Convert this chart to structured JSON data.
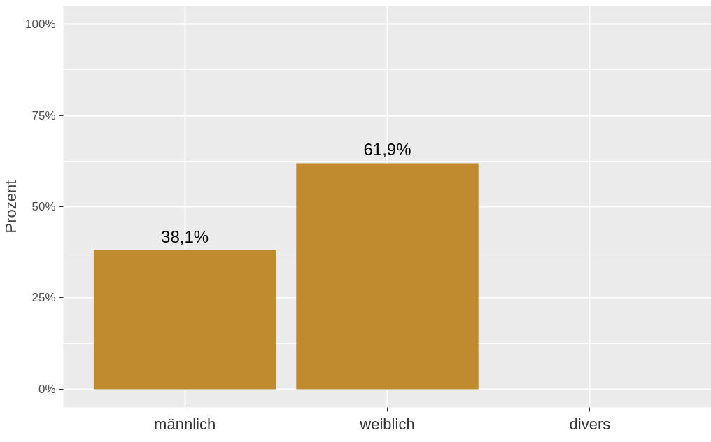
{
  "chart_data": {
    "type": "bar",
    "ylabel": "Prozent",
    "categories": [
      "männlich",
      "weiblich",
      "divers"
    ],
    "values": [
      38.1,
      61.9,
      0
    ],
    "color": "#c08b2e",
    "value_labels": [
      "38,1%",
      "61,9%",
      null
    ],
    "ylim": [
      -5,
      105
    ],
    "yticks": [
      {
        "value": 0,
        "label": "0%"
      },
      {
        "value": 25,
        "label": "25%"
      },
      {
        "value": 50,
        "label": "50%"
      },
      {
        "value": 75,
        "label": "75%"
      },
      {
        "value": 100,
        "label": "100%"
      }
    ],
    "grid": true
  }
}
